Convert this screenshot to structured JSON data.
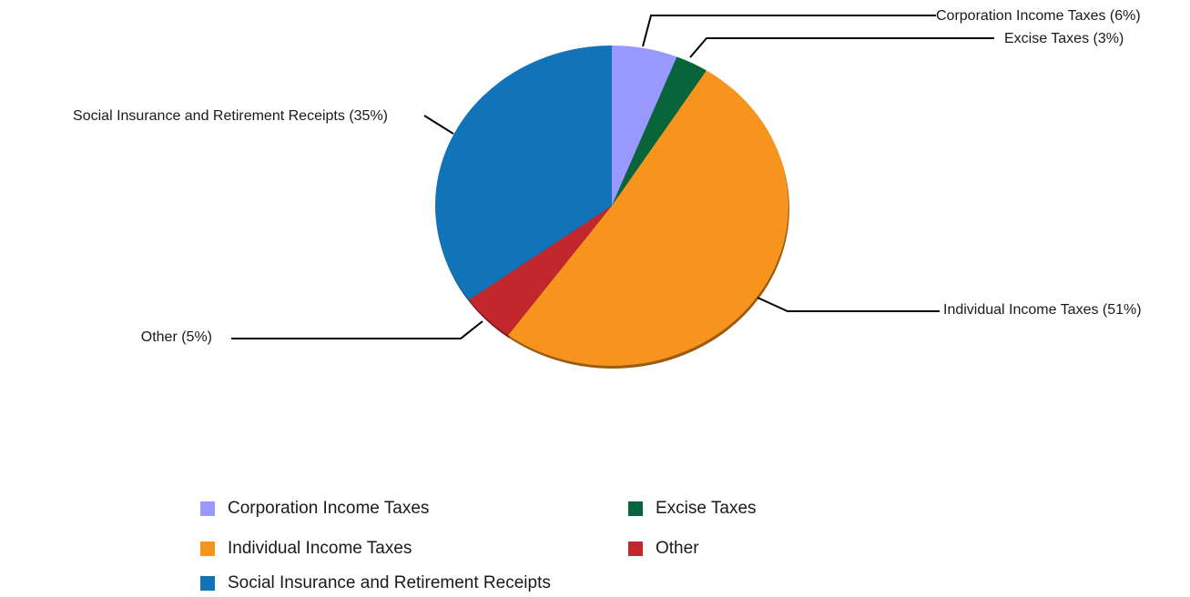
{
  "chart_data": {
    "type": "pie",
    "slices": [
      {
        "name": "Corporation Income Taxes",
        "value": 6,
        "label": "Corporation Income Taxes (6%)",
        "color": "#9999ff"
      },
      {
        "name": "Excise Taxes",
        "value": 3,
        "label": "Excise Taxes (3%)",
        "color": "#08653b"
      },
      {
        "name": "Individual Income Taxes",
        "value": 51,
        "label": "Individual Income Taxes (51%)",
        "color": "#f7941d"
      },
      {
        "name": "Other",
        "value": 5,
        "label": "Other (5%)",
        "color": "#c1272d"
      },
      {
        "name": "Social Insurance and Retirement Receipts",
        "value": 35,
        "label": "Social Insurance and Retirement Receipts (35%)",
        "color": "#1174b9"
      }
    ],
    "legend": [
      "Corporation Income Taxes",
      "Excise Taxes",
      "Individual Income Taxes",
      "Other",
      "Social Insurance and Retirement Receipts"
    ],
    "legend_placement": "bottom"
  }
}
